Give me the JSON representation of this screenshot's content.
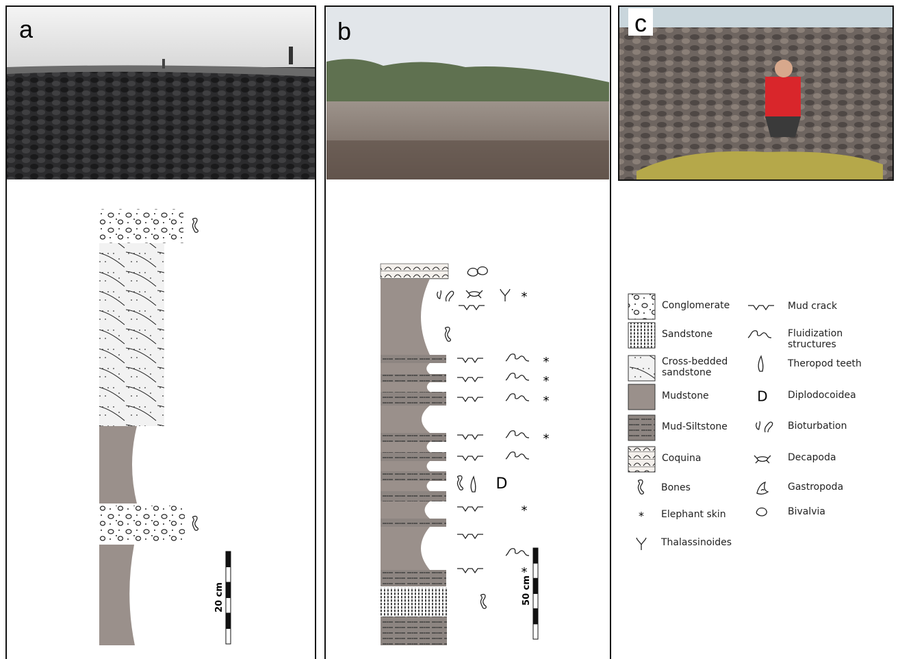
{
  "panels": [
    {
      "label": "a",
      "scale": "20 cm"
    },
    {
      "label": "b",
      "scale": "50 cm"
    },
    {
      "label": "c"
    }
  ],
  "legend": {
    "lithology": [
      "Conglomerate",
      "Sandstone",
      "Cross-bedded sandstone",
      "Mudstone",
      "Mud-Siltstone",
      "Coquina"
    ],
    "symbols": [
      {
        "name": "Bones"
      },
      {
        "name": "Elephant skin",
        "icon": "*"
      },
      {
        "name": "Thalassinoides"
      },
      {
        "name": "Mud crack"
      },
      {
        "name": "Fluidization structures"
      },
      {
        "name": "Theropod teeth"
      },
      {
        "name": "Diplodocoidea",
        "icon": "D"
      },
      {
        "name": "Bioturbation"
      },
      {
        "name": "Decapoda"
      },
      {
        "name": "Gastropoda"
      },
      {
        "name": "Bivalvia"
      }
    ]
  }
}
